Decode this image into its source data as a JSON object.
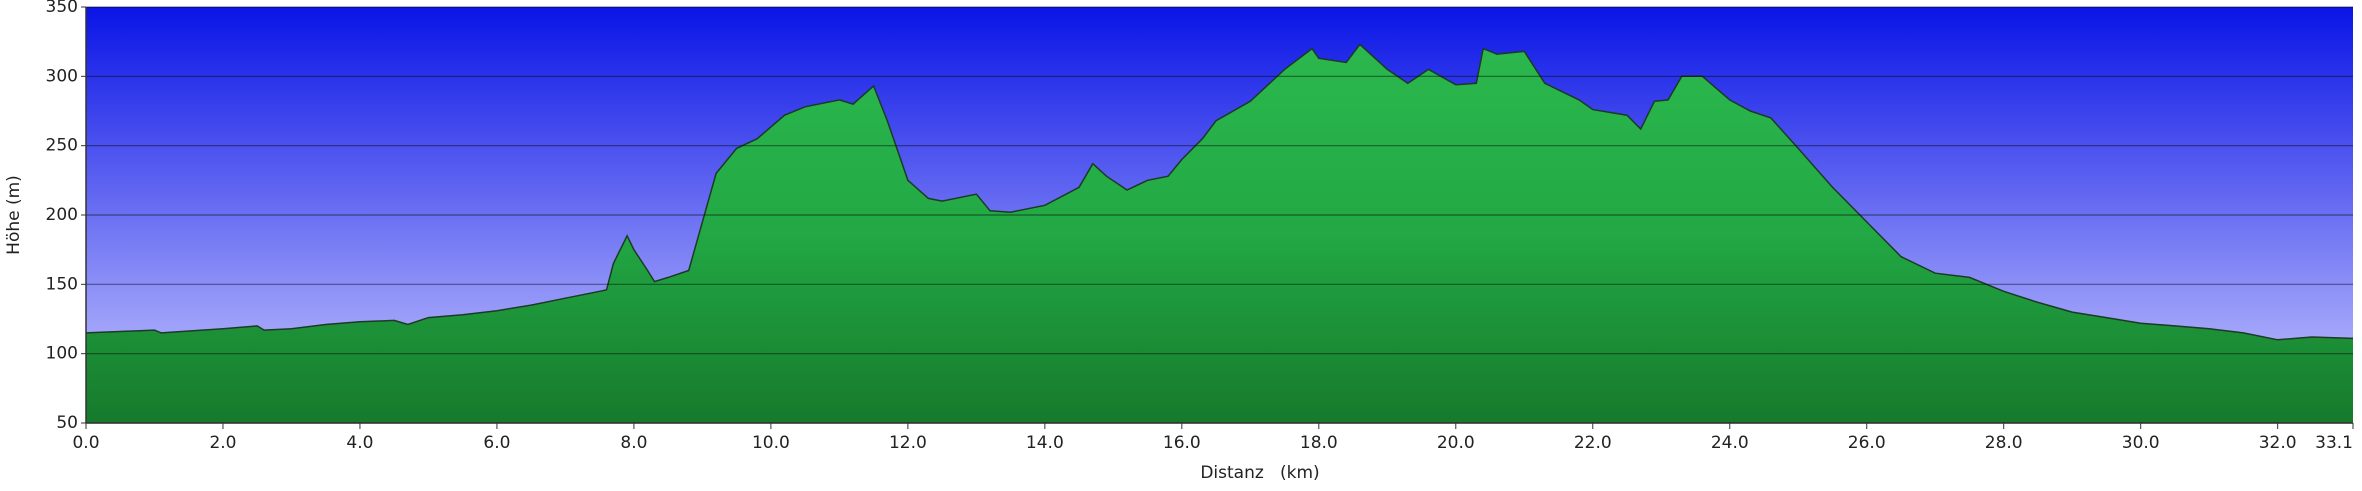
{
  "chart_data": {
    "type": "area",
    "x_label": "Distanz   (km)",
    "y_label": "Höhe (m)",
    "x": [
      0,
      0.5,
      1,
      1.1,
      2,
      2.5,
      2.6,
      3,
      3.5,
      4,
      4.5,
      4.7,
      5,
      5.5,
      6,
      6.5,
      7,
      7.5,
      7.6,
      7.7,
      7.9,
      8.0,
      8.2,
      8.3,
      8.5,
      8.8,
      9.0,
      9.2,
      9.5,
      9.8,
      10.2,
      10.5,
      11.0,
      11.2,
      11.5,
      11.7,
      12.0,
      12.3,
      12.5,
      13.0,
      13.2,
      13.5,
      14.0,
      14.5,
      14.7,
      14.9,
      15.2,
      15.5,
      15.8,
      16.0,
      16.3,
      16.5,
      17.0,
      17.5,
      17.9,
      18.0,
      18.4,
      18.6,
      19.0,
      19.3,
      19.6,
      20.0,
      20.3,
      20.4,
      20.6,
      21.0,
      21.3,
      21.8,
      22.0,
      22.5,
      22.7,
      22.9,
      23.1,
      23.3,
      23.6,
      24.0,
      24.3,
      24.6,
      25.0,
      25.5,
      26.0,
      26.5,
      27.0,
      27.5,
      28.0,
      28.5,
      29.0,
      29.5,
      30.0,
      30.5,
      31.0,
      31.5,
      32.0,
      32.5,
      33.1
    ],
    "values": [
      115,
      116,
      117,
      115,
      118,
      120,
      117,
      118,
      121,
      123,
      124,
      121,
      126,
      128,
      131,
      135,
      140,
      145,
      146,
      165,
      185,
      175,
      160,
      152,
      155,
      160,
      195,
      230,
      248,
      255,
      272,
      278,
      283,
      280,
      293,
      268,
      225,
      212,
      210,
      215,
      203,
      202,
      207,
      220,
      237,
      228,
      218,
      225,
      228,
      240,
      255,
      268,
      282,
      305,
      320,
      313,
      310,
      323,
      305,
      295,
      305,
      294,
      295,
      320,
      316,
      318,
      295,
      283,
      276,
      272,
      262,
      282,
      283,
      300,
      300,
      283,
      275,
      270,
      248,
      220,
      195,
      170,
      158,
      155,
      145,
      137,
      130,
      126,
      122,
      120,
      118,
      115,
      110,
      112,
      111
    ],
    "color": "#22a845",
    "xlim": [
      0,
      33.1
    ],
    "ylim": [
      50,
      350
    ],
    "xticks": [
      {
        "value": 0,
        "label": "0.0"
      },
      {
        "value": 2,
        "label": "2.0"
      },
      {
        "value": 4,
        "label": "4.0"
      },
      {
        "value": 6,
        "label": "6.0"
      },
      {
        "value": 8,
        "label": "8.0"
      },
      {
        "value": 10,
        "label": "10.0"
      },
      {
        "value": 12,
        "label": "12.0"
      },
      {
        "value": 14,
        "label": "14.0"
      },
      {
        "value": 16,
        "label": "16.0"
      },
      {
        "value": 18,
        "label": "18.0"
      },
      {
        "value": 20,
        "label": "20.0"
      },
      {
        "value": 22,
        "label": "22.0"
      },
      {
        "value": 24,
        "label": "24.0"
      },
      {
        "value": 26,
        "label": "26.0"
      },
      {
        "value": 28,
        "label": "28.0"
      },
      {
        "value": 30,
        "label": "30.0"
      },
      {
        "value": 32,
        "label": "32.0"
      },
      33.1
    ],
    "yticks": [
      50,
      100,
      150,
      200,
      250,
      300,
      350
    ],
    "grid": true
  }
}
